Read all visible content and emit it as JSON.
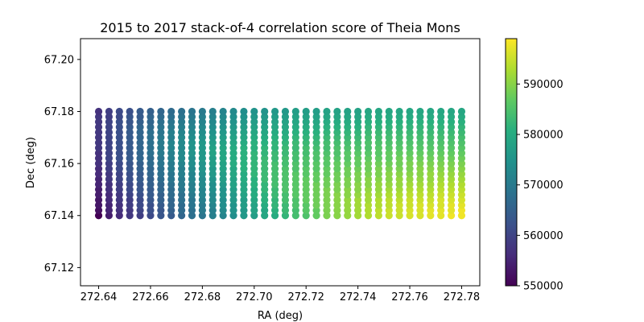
{
  "chart_data": {
    "type": "scatter",
    "title": "2015 to 2017 stack-of-4 correlation score of Theia Mons",
    "xlabel": "RA (deg)",
    "ylabel": "Dec (deg)",
    "xlim": [
      272.633,
      272.787
    ],
    "ylim": [
      67.113,
      67.208
    ],
    "x_ticks": [
      272.64,
      272.66,
      272.68,
      272.7,
      272.72,
      272.74,
      272.76,
      272.78
    ],
    "x_tick_labels": [
      "272.64",
      "272.66",
      "272.68",
      "272.70",
      "272.72",
      "272.74",
      "272.76",
      "272.78"
    ],
    "y_ticks": [
      67.12,
      67.14,
      67.16,
      67.18,
      67.2
    ],
    "y_tick_labels": [
      "67.12",
      "67.14",
      "67.16",
      "67.18",
      "67.20"
    ],
    "grid": false,
    "colormap": "viridis",
    "colorbar": {
      "min": 550000,
      "max": 599000,
      "ticks": [
        550000,
        560000,
        570000,
        580000,
        590000
      ],
      "tick_labels": [
        "550000",
        "560000",
        "570000",
        "580000",
        "590000"
      ]
    },
    "grid_points": {
      "x_start": 272.64,
      "x_step": 0.004,
      "x_count": 36,
      "y_start": 67.14,
      "y_step": 0.002,
      "y_count": 21
    },
    "score_row_values": [
      [
        550000,
        554000,
        556000,
        558000,
        559000,
        561000,
        563000,
        564000,
        566000,
        568000,
        569000,
        571000,
        572000,
        574000,
        576000,
        577000,
        579000,
        580000,
        582000,
        584000,
        585000,
        587000,
        589000,
        590000,
        591000,
        592000,
        593000,
        594000,
        595000,
        595000,
        596000,
        596000,
        597000,
        597000,
        598000,
        598000
      ],
      [
        552000,
        555000,
        557000,
        558000,
        560000,
        562000,
        563000,
        565000,
        567000,
        568000,
        570000,
        571000,
        573000,
        575000,
        576000,
        578000,
        579000,
        581000,
        583000,
        584000,
        586000,
        587000,
        589000,
        590000,
        591000,
        592000,
        593000,
        594000,
        595000,
        595000,
        596000,
        596000,
        597000,
        597000,
        597000,
        598000
      ],
      [
        553000,
        555000,
        557000,
        559000,
        561000,
        562000,
        564000,
        566000,
        567000,
        569000,
        570000,
        572000,
        574000,
        575000,
        577000,
        578000,
        580000,
        582000,
        583000,
        585000,
        586000,
        588000,
        589000,
        590000,
        591000,
        592000,
        593000,
        593000,
        594000,
        595000,
        595000,
        596000,
        596000,
        596000,
        597000,
        597000
      ],
      [
        553000,
        556000,
        558000,
        559000,
        561000,
        563000,
        565000,
        566000,
        568000,
        569000,
        571000,
        573000,
        574000,
        576000,
        577000,
        579000,
        581000,
        582000,
        584000,
        585000,
        587000,
        588000,
        589000,
        590000,
        591000,
        592000,
        592000,
        593000,
        594000,
        594000,
        595000,
        595000,
        595000,
        596000,
        596000,
        596000
      ],
      [
        554000,
        556000,
        558000,
        560000,
        562000,
        564000,
        565000,
        567000,
        568000,
        570000,
        572000,
        573000,
        575000,
        576000,
        578000,
        580000,
        581000,
        583000,
        584000,
        586000,
        587000,
        588000,
        589000,
        590000,
        590000,
        591000,
        592000,
        592000,
        593000,
        593000,
        594000,
        594000,
        594000,
        595000,
        595000,
        595000
      ],
      [
        554000,
        557000,
        559000,
        561000,
        563000,
        564000,
        566000,
        567000,
        569000,
        571000,
        572000,
        574000,
        575000,
        577000,
        579000,
        580000,
        582000,
        583000,
        585000,
        586000,
        587000,
        588000,
        589000,
        589000,
        590000,
        590000,
        591000,
        591000,
        592000,
        592000,
        593000,
        593000,
        593000,
        594000,
        594000,
        594000
      ],
      [
        555000,
        557000,
        559000,
        561000,
        563000,
        565000,
        566000,
        568000,
        570000,
        571000,
        573000,
        574000,
        576000,
        578000,
        579000,
        581000,
        582000,
        584000,
        585000,
        586000,
        587000,
        588000,
        588000,
        589000,
        589000,
        590000,
        590000,
        591000,
        591000,
        591000,
        592000,
        592000,
        592000,
        593000,
        593000,
        593000
      ],
      [
        555000,
        558000,
        560000,
        562000,
        564000,
        565000,
        567000,
        569000,
        570000,
        572000,
        573000,
        575000,
        577000,
        578000,
        580000,
        581000,
        583000,
        584000,
        585000,
        586000,
        587000,
        587000,
        588000,
        588000,
        589000,
        589000,
        590000,
        590000,
        590000,
        591000,
        591000,
        591000,
        591000,
        592000,
        592000,
        592000
      ],
      [
        556000,
        558000,
        560000,
        562000,
        564000,
        566000,
        568000,
        569000,
        571000,
        572000,
        574000,
        576000,
        577000,
        579000,
        580000,
        582000,
        583000,
        584000,
        585000,
        586000,
        586000,
        587000,
        587000,
        588000,
        588000,
        589000,
        589000,
        589000,
        590000,
        590000,
        590000,
        590000,
        591000,
        591000,
        591000,
        591000
      ],
      [
        556000,
        559000,
        561000,
        563000,
        565000,
        566000,
        568000,
        570000,
        571000,
        573000,
        575000,
        576000,
        578000,
        579000,
        581000,
        582000,
        583000,
        584000,
        585000,
        585000,
        586000,
        586000,
        587000,
        587000,
        588000,
        588000,
        588000,
        589000,
        589000,
        589000,
        589000,
        590000,
        590000,
        590000,
        590000,
        590000
      ],
      [
        557000,
        559000,
        561000,
        563000,
        565000,
        567000,
        569000,
        570000,
        572000,
        574000,
        575000,
        577000,
        578000,
        580000,
        581000,
        582000,
        583000,
        584000,
        584000,
        585000,
        585000,
        586000,
        586000,
        587000,
        587000,
        587000,
        588000,
        588000,
        588000,
        588000,
        589000,
        589000,
        589000,
        589000,
        589000,
        589000
      ],
      [
        557000,
        560000,
        562000,
        564000,
        566000,
        567000,
        569000,
        571000,
        573000,
        574000,
        576000,
        577000,
        579000,
        580000,
        581000,
        582000,
        583000,
        583000,
        584000,
        584000,
        585000,
        585000,
        586000,
        586000,
        586000,
        587000,
        587000,
        587000,
        587000,
        588000,
        588000,
        588000,
        588000,
        588000,
        588000,
        588000
      ],
      [
        557000,
        560000,
        562000,
        564000,
        566000,
        568000,
        570000,
        571000,
        573000,
        575000,
        576000,
        578000,
        579000,
        580000,
        581000,
        582000,
        582000,
        583000,
        583000,
        584000,
        584000,
        585000,
        585000,
        585000,
        586000,
        586000,
        586000,
        586000,
        587000,
        587000,
        587000,
        587000,
        587000,
        587000,
        587000,
        587000
      ],
      [
        558000,
        560000,
        562000,
        564000,
        566000,
        568000,
        570000,
        572000,
        573000,
        575000,
        576000,
        578000,
        579000,
        580000,
        581000,
        581000,
        582000,
        582000,
        583000,
        583000,
        584000,
        584000,
        584000,
        585000,
        585000,
        585000,
        585000,
        586000,
        586000,
        586000,
        586000,
        586000,
        586000,
        586000,
        586000,
        586000
      ],
      [
        558000,
        560000,
        562000,
        564000,
        566000,
        568000,
        570000,
        572000,
        573000,
        575000,
        576000,
        577000,
        578000,
        579000,
        580000,
        581000,
        581000,
        582000,
        582000,
        583000,
        583000,
        583000,
        584000,
        584000,
        584000,
        584000,
        585000,
        585000,
        585000,
        585000,
        585000,
        585000,
        585000,
        585000,
        585000,
        585000
      ],
      [
        558000,
        560000,
        562000,
        564000,
        566000,
        568000,
        570000,
        571000,
        573000,
        574000,
        575000,
        576000,
        577000,
        578000,
        579000,
        580000,
        580000,
        581000,
        581000,
        582000,
        582000,
        582000,
        583000,
        583000,
        583000,
        583000,
        584000,
        584000,
        584000,
        584000,
        584000,
        584000,
        584000,
        584000,
        584000,
        584000
      ],
      [
        558000,
        560000,
        562000,
        564000,
        566000,
        568000,
        569000,
        571000,
        572000,
        573000,
        574000,
        575000,
        576000,
        577000,
        578000,
        579000,
        579000,
        580000,
        580000,
        581000,
        581000,
        581000,
        582000,
        582000,
        582000,
        582000,
        583000,
        583000,
        583000,
        583000,
        583000,
        583000,
        583000,
        583000,
        583000,
        583000
      ],
      [
        558000,
        560000,
        562000,
        564000,
        566000,
        567000,
        569000,
        570000,
        571000,
        572000,
        573000,
        574000,
        575000,
        576000,
        577000,
        578000,
        578000,
        579000,
        579000,
        580000,
        580000,
        580000,
        581000,
        581000,
        581000,
        581000,
        582000,
        582000,
        582000,
        582000,
        582000,
        582000,
        582000,
        582000,
        582000,
        582000
      ],
      [
        558000,
        560000,
        562000,
        563000,
        565000,
        566000,
        568000,
        569000,
        570000,
        571000,
        572000,
        573000,
        574000,
        575000,
        576000,
        577000,
        577000,
        578000,
        578000,
        579000,
        579000,
        579000,
        580000,
        580000,
        580000,
        580000,
        581000,
        581000,
        581000,
        581000,
        581000,
        581000,
        581000,
        581000,
        581000,
        581000
      ],
      [
        558000,
        559000,
        561000,
        563000,
        564000,
        566000,
        567000,
        568000,
        569000,
        570000,
        571000,
        572000,
        573000,
        574000,
        575000,
        576000,
        576000,
        577000,
        577000,
        578000,
        578000,
        578000,
        579000,
        579000,
        579000,
        579000,
        580000,
        580000,
        580000,
        580000,
        580000,
        580000,
        580000,
        580000,
        580000,
        580000
      ],
      [
        557000,
        559000,
        561000,
        562000,
        564000,
        565000,
        566000,
        567000,
        568000,
        569000,
        570000,
        571000,
        572000,
        573000,
        574000,
        575000,
        575000,
        576000,
        576000,
        577000,
        577000,
        577000,
        578000,
        578000,
        578000,
        578000,
        579000,
        579000,
        579000,
        579000,
        579000,
        579000,
        579000,
        579000,
        579000,
        579000
      ]
    ]
  }
}
